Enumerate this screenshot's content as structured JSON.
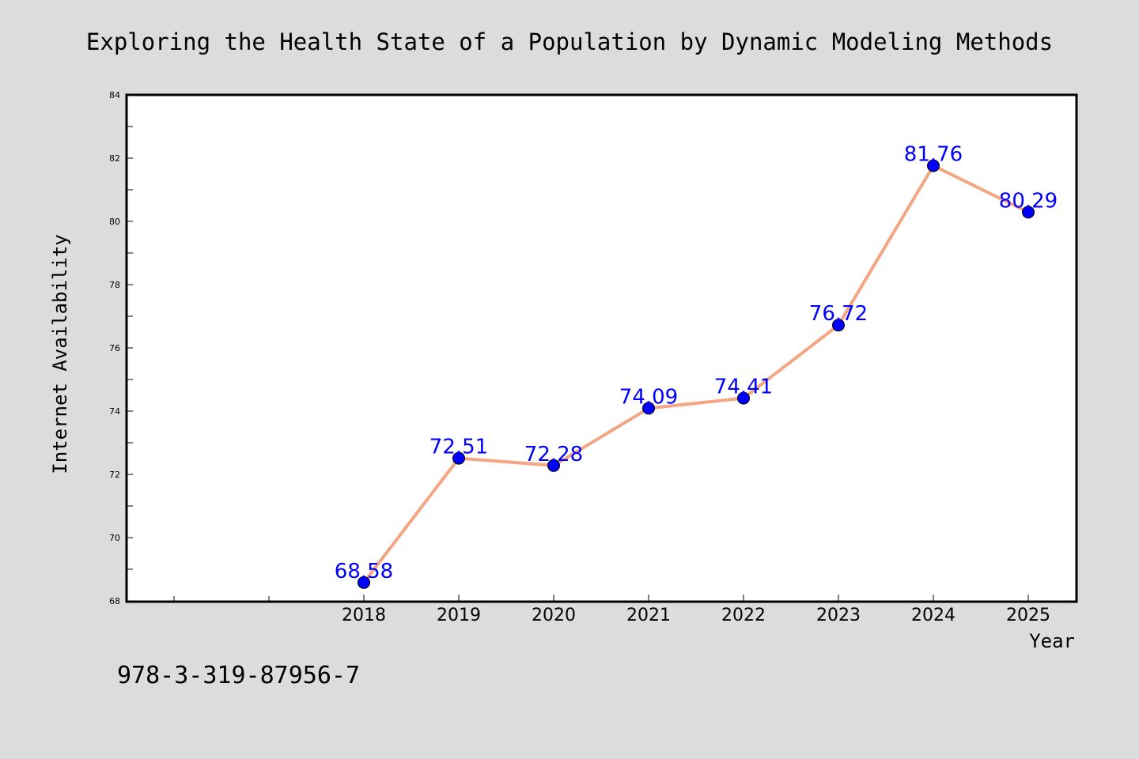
{
  "chart_data": {
    "type": "line",
    "title": "Exploring the Health State of a Population by Dynamic Modeling Methods",
    "xlabel": "Year",
    "ylabel": "Internet Availability",
    "x": [
      "2018",
      "2019",
      "2020",
      "2021",
      "2022",
      "2023",
      "2024",
      "2025"
    ],
    "series": [
      {
        "values": [
          68.58,
          72.51,
          72.28,
          74.09,
          74.41,
          76.72,
          81.76,
          80.29
        ],
        "value_labels": [
          "68.58",
          "72.51",
          "72.28",
          "74.09",
          "74.41",
          "76.72",
          "81.76",
          "80.29"
        ]
      }
    ],
    "ylim": [
      68,
      84
    ],
    "yticks": [
      "68",
      "70",
      "72",
      "74",
      "76",
      "78",
      "80",
      "82",
      "84"
    ],
    "grid": false,
    "legend": "none",
    "footnote": "978-3-319-87956-7",
    "colors": {
      "background": "#dcdcdc",
      "plot_background": "#ffffff",
      "line": "#f4a582",
      "marker": "#0000ff",
      "value_label": "#0000ff",
      "axis": "#000000"
    }
  }
}
